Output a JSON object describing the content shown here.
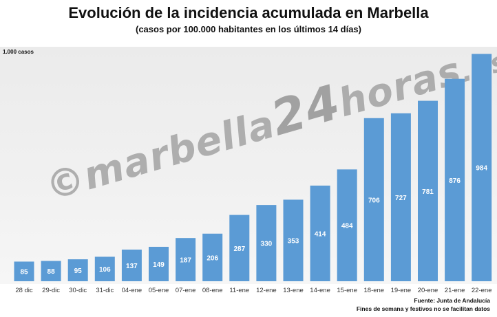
{
  "title": "Evolución de la incidencia acumulada en Marbella",
  "subtitle": "(casos por 100.000 habitantes en los últimos 14 días)",
  "ymax_label": "1.000 casos",
  "watermark": {
    "prefix": "©",
    "main": "marbella",
    "number": "24",
    "suffix": "horas",
    "domain": ".es"
  },
  "source": "Fuente: Junta de Andalucía",
  "note": "Fines de semana y festivos no se facilitan datos",
  "colors": {
    "bar": "#5b9bd5",
    "background": "#ededed"
  },
  "chart_data": {
    "type": "bar",
    "categories": [
      "28 dic",
      "29-dic",
      "30-dic",
      "31-dic",
      "04-ene",
      "05-ene",
      "07-ene",
      "08-ene",
      "11-ene",
      "12-ene",
      "13-ene",
      "14-ene",
      "15-ene",
      "18-ene",
      "19-ene",
      "20-ene",
      "21-ene",
      "22-ene"
    ],
    "values": [
      85,
      88,
      95,
      106,
      137,
      149,
      187,
      206,
      287,
      330,
      353,
      414,
      484,
      706,
      727,
      781,
      876,
      984
    ],
    "title": "Evolución de la incidencia acumulada en Marbella",
    "subtitle": "(casos por 100.000 habitantes en los últimos 14 días)",
    "xlabel": "",
    "ylabel": "",
    "ylim": [
      0,
      1000
    ],
    "grid": false,
    "legend": "none",
    "data_labels": "inside-top"
  }
}
